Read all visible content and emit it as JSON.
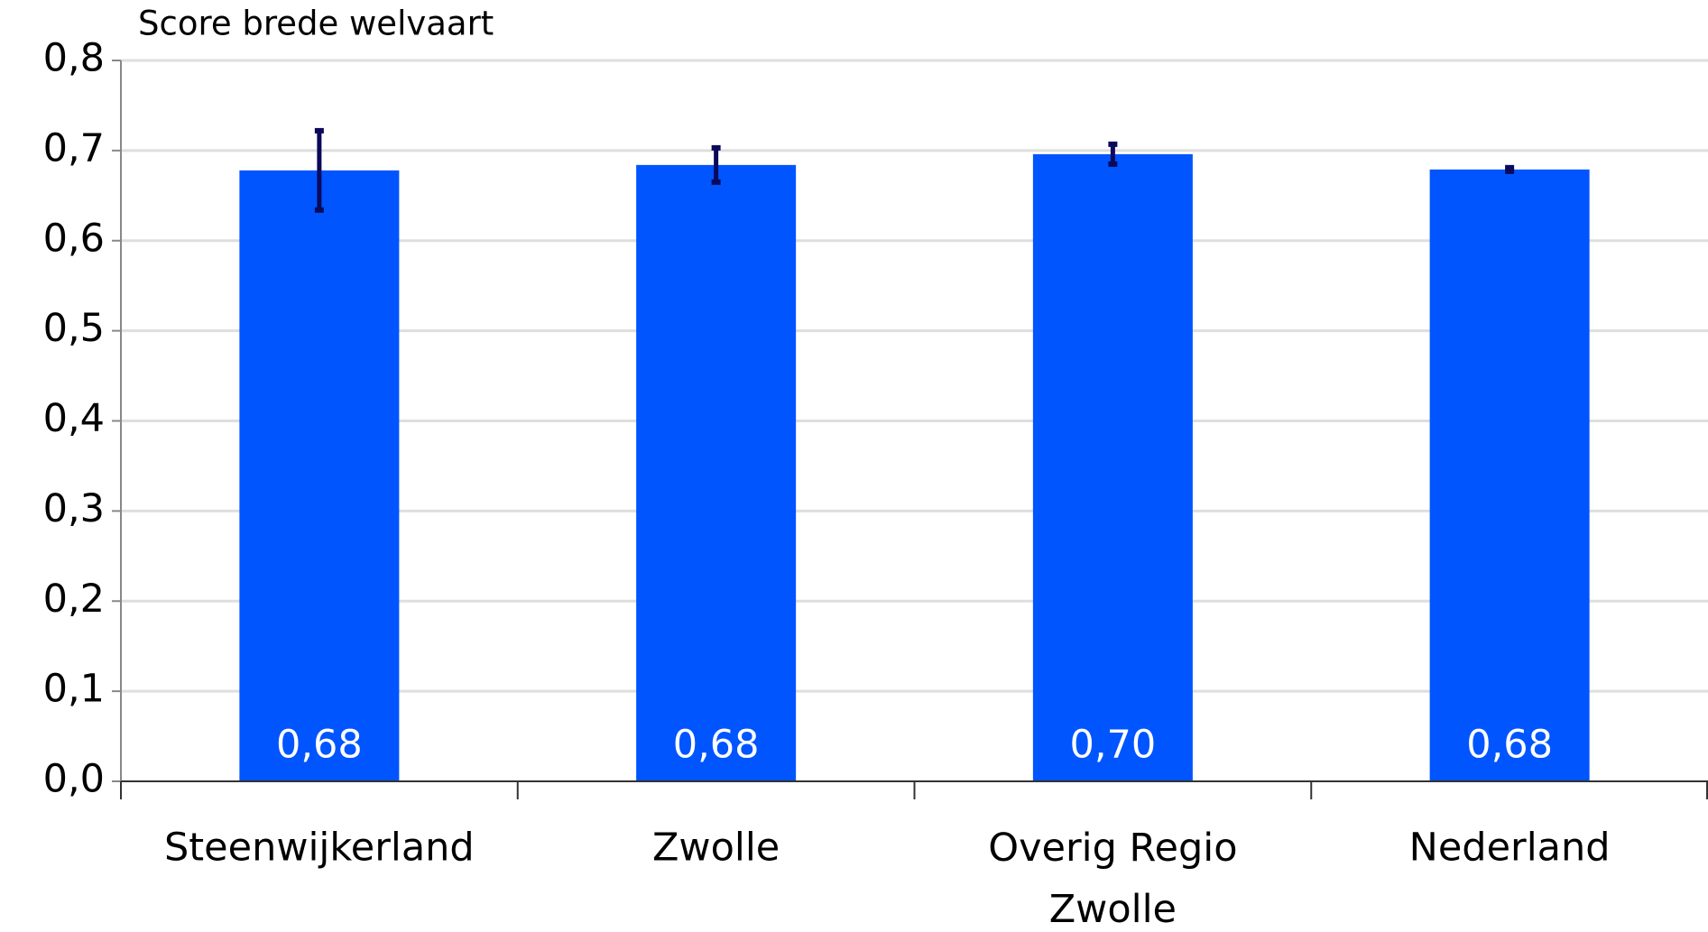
{
  "chart_data": {
    "type": "bar",
    "y_axis_label": "Score brede welvaart",
    "categories": [
      "Steenwijkerland",
      "Zwolle",
      "Overig Regio Zwolle",
      "Nederland"
    ],
    "values": [
      0.678,
      0.684,
      0.696,
      0.679
    ],
    "value_labels": [
      "0,68",
      "0,68",
      "0,70",
      "0,68"
    ],
    "errors": [
      0.044,
      0.019,
      0.011,
      0.002
    ],
    "color": "#0055ff",
    "error_color": "#0a0a5a",
    "ylim": [
      0,
      0.8
    ],
    "yticks": [
      {
        "value": 0,
        "label": "0,0"
      },
      {
        "value": 0.1,
        "label": "0,1"
      },
      {
        "value": 0.2,
        "label": "0,2"
      },
      {
        "value": 0.3,
        "label": "0,3"
      },
      {
        "value": 0.4,
        "label": "0,4"
      },
      {
        "value": 0.5,
        "label": "0,5"
      },
      {
        "value": 0.6,
        "label": "0,6"
      },
      {
        "value": 0.7,
        "label": "0,7"
      },
      {
        "value": 0.8,
        "label": "0,8"
      }
    ],
    "grid": true
  }
}
